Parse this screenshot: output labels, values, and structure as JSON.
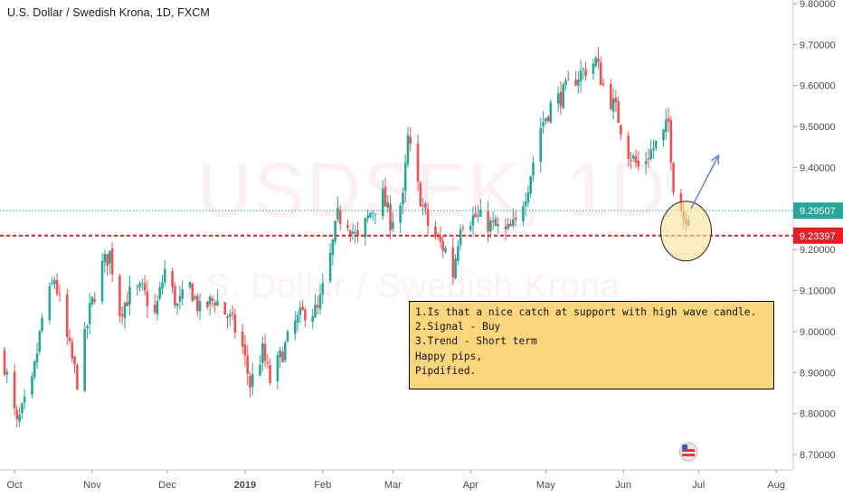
{
  "header": {
    "title": "U.S. Dollar / Swedish Krona, 1D, FXCM"
  },
  "watermark": {
    "symbol": "USDSEK, 1D",
    "name": "U.S. Dollar / Swedish Krona"
  },
  "note": {
    "lines": [
      "1.Is that a nice catch at support with high wave candle.",
      "2.Signal - Buy",
      "3.Trend - Short term",
      "",
      "Happy pips,",
      "Pipdified."
    ],
    "background": "#fbd67c"
  },
  "colors": {
    "up": "#26a69a",
    "down": "#ef5350",
    "support": "#e3202a",
    "price_line": "#26a69a",
    "arrow": "#6a89c9",
    "highlight": "#f9df9a"
  },
  "chart_data": {
    "type": "candlestick",
    "title": "U.S. Dollar / Swedish Krona, 1D, FXCM",
    "ylim": [
      8.66,
      9.82
    ],
    "y_ticks": [
      "9.80000",
      "9.70000",
      "9.60000",
      "9.50000",
      "9.40000",
      "9.30000",
      "9.20000",
      "9.10000",
      "9.00000",
      "8.90000",
      "8.80000",
      "8.70000"
    ],
    "x_ticks": [
      "Oct",
      "Nov",
      "Dec",
      "2019",
      "Feb",
      "Mar",
      "Apr",
      "May",
      "Jun",
      "Jul",
      "Aug"
    ],
    "price_line": {
      "label": "9.29507",
      "value": 9.29507
    },
    "support_line": {
      "label": "9.23397",
      "value": 9.23397
    },
    "close_anchors": [
      [
        "2018-09-27",
        8.92
      ],
      [
        "2018-10-02",
        8.77
      ],
      [
        "2018-10-08",
        8.87
      ],
      [
        "2018-10-12",
        9.03
      ],
      [
        "2018-10-17",
        9.13
      ],
      [
        "2018-10-22",
        8.98
      ],
      [
        "2018-10-26",
        8.88
      ],
      [
        "2018-10-31",
        9.05
      ],
      [
        "2018-11-05",
        9.16
      ],
      [
        "2018-11-08",
        9.19
      ],
      [
        "2018-11-12",
        9.05
      ],
      [
        "2018-11-16",
        9.09
      ],
      [
        "2018-11-21",
        9.1
      ],
      [
        "2018-11-26",
        9.04
      ],
      [
        "2018-11-30",
        9.15
      ],
      [
        "2018-12-05",
        9.06
      ],
      [
        "2018-12-10",
        9.11
      ],
      [
        "2018-12-14",
        9.05
      ],
      [
        "2018-12-20",
        9.08
      ],
      [
        "2018-12-27",
        9.02
      ],
      [
        "2018-12-31",
        8.96
      ],
      [
        "2019-01-03",
        8.87
      ],
      [
        "2019-01-08",
        8.95
      ],
      [
        "2019-01-11",
        8.88
      ],
      [
        "2019-01-16",
        8.95
      ],
      [
        "2019-01-21",
        9.02
      ],
      [
        "2019-01-25",
        9.05
      ],
      [
        "2019-01-30",
        9.05
      ],
      [
        "2019-02-04",
        9.18
      ],
      [
        "2019-02-07",
        9.28
      ],
      [
        "2019-02-11",
        9.27
      ],
      [
        "2019-02-15",
        9.22
      ],
      [
        "2019-02-20",
        9.29
      ],
      [
        "2019-02-25",
        9.33
      ],
      [
        "2019-02-28",
        9.27
      ],
      [
        "2019-03-05",
        9.32
      ],
      [
        "2019-03-07",
        9.47
      ],
      [
        "2019-03-11",
        9.35
      ],
      [
        "2019-03-15",
        9.26
      ],
      [
        "2019-03-19",
        9.22
      ],
      [
        "2019-03-22",
        9.2
      ],
      [
        "2019-03-25",
        9.14
      ],
      [
        "2019-03-28",
        9.27
      ],
      [
        "2019-04-03",
        9.28
      ],
      [
        "2019-04-09",
        9.26
      ],
      [
        "2019-04-15",
        9.24
      ],
      [
        "2019-04-19",
        9.26
      ],
      [
        "2019-04-24",
        9.36
      ],
      [
        "2019-04-29",
        9.5
      ],
      [
        "2019-05-03",
        9.55
      ],
      [
        "2019-05-08",
        9.58
      ],
      [
        "2019-05-13",
        9.62
      ],
      [
        "2019-05-17",
        9.64
      ],
      [
        "2019-05-21",
        9.66
      ],
      [
        "2019-05-24",
        9.6
      ],
      [
        "2019-05-29",
        9.54
      ],
      [
        "2019-06-03",
        9.44
      ],
      [
        "2019-06-07",
        9.4
      ],
      [
        "2019-06-12",
        9.44
      ],
      [
        "2019-06-17",
        9.48
      ],
      [
        "2019-06-19",
        9.51
      ],
      [
        "2019-06-21",
        9.36
      ],
      [
        "2019-06-25",
        9.28
      ],
      [
        "2019-06-27",
        9.29
      ]
    ],
    "start": "2018-09-27",
    "end": "2019-06-27",
    "x_range": [
      "2018-09-27",
      "2019-08-06"
    ],
    "annotations": {
      "circle_center": [
        "2019-06-26",
        9.245
      ],
      "arrow": {
        "from": [
          "2019-06-28",
          9.3
        ],
        "to": [
          "2019-07-09",
          9.43
        ]
      }
    }
  }
}
